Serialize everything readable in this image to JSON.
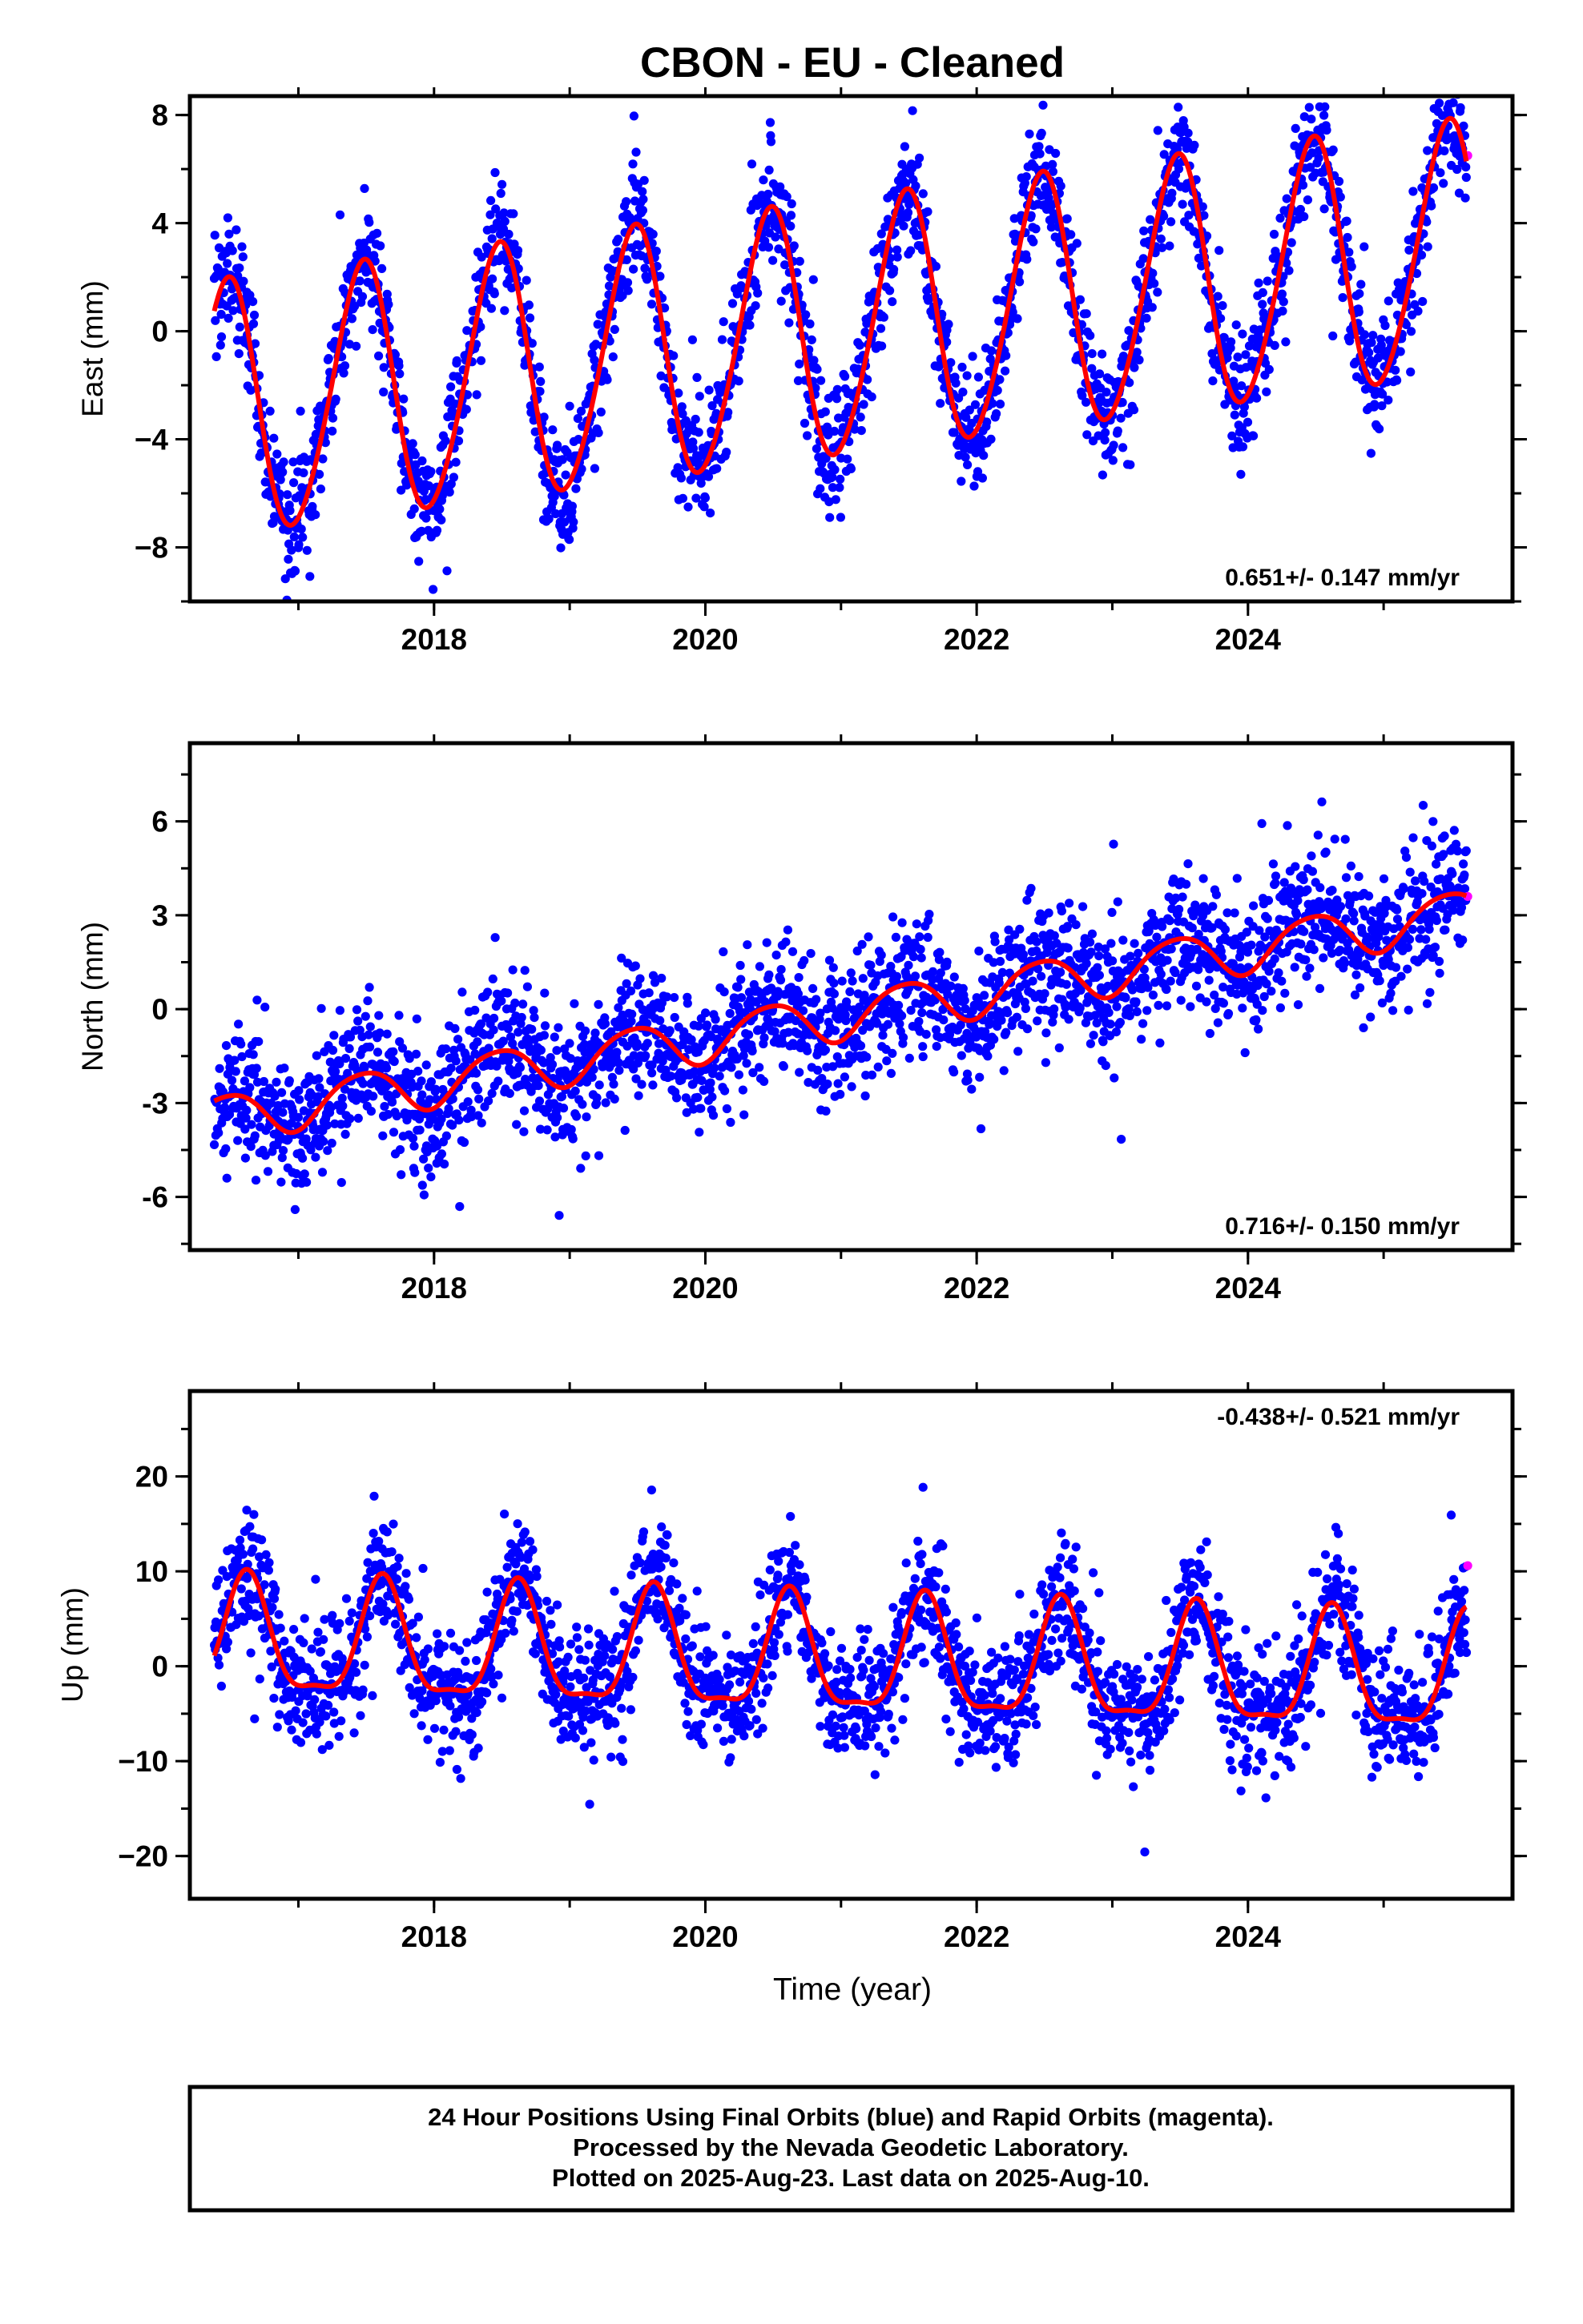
{
  "chart_data": {
    "type": "scatter",
    "title": "CBON  - EU - Cleaned",
    "xlabel": "Time (year)",
    "x_ticks": [
      2018,
      2020,
      2022,
      2024
    ],
    "x_tick_labels": [
      "2018",
      "2020",
      "2022",
      "2024"
    ],
    "xlim": [
      2016.2,
      2025.95
    ],
    "colors": {
      "final_orbits": "#0000ff",
      "rapid_orbits": "#ff00ff",
      "model": "#ff0000"
    },
    "panels": [
      {
        "id": "east",
        "ylabel": "East (mm)",
        "ylim": [
          -10.0,
          8.7
        ],
        "y_ticks": [
          8,
          4,
          0,
          -4,
          -8
        ],
        "y_tick_labels": [
          "8",
          "4",
          "0",
          "−4",
          "−8"
        ],
        "rate_label": "0.651+/- 0.147 mm/yr",
        "rate_position": "bottom-right",
        "data_start": 2016.38,
        "data_end": 2025.61,
        "trend": {
          "intercept_at_2021": 0.0,
          "slope_mm_per_yr": 0.651
        },
        "annual": {
          "amplitude": 4.7,
          "peak_year_fraction": 0.47
        },
        "semiannual": {
          "amplitude": 0.4,
          "phase_year_fraction": 0.05
        },
        "scatter_sd": 1.1,
        "point_count": 2400,
        "rapid_points": [
          {
            "x": 2025.62,
            "y": 6.5
          }
        ]
      },
      {
        "id": "north",
        "ylabel": "North (mm)",
        "ylim": [
          -7.7,
          8.5
        ],
        "y_ticks": [
          6,
          3,
          0,
          -3,
          -6
        ],
        "y_tick_labels": [
          "6",
          "3",
          "0",
          "-3",
          "-6"
        ],
        "rate_label": "0.716+/- 0.150 mm/yr",
        "rate_position": "bottom-right",
        "data_start": 2016.38,
        "data_end": 2025.61,
        "trend": {
          "intercept_at_2021": -0.2,
          "slope_mm_per_yr": 0.716
        },
        "annual": {
          "amplitude": 0.75,
          "peak_year_fraction": 0.47
        },
        "semiannual": {
          "amplitude": 0.1,
          "phase_year_fraction": 0.2
        },
        "scatter_sd": 1.05,
        "point_count": 2400,
        "rapid_points": [
          {
            "x": 2025.62,
            "y": 3.6
          }
        ]
      },
      {
        "id": "up",
        "ylabel": "Up (mm)",
        "ylim": [
          -24.5,
          29.0
        ],
        "y_ticks": [
          20,
          10,
          0,
          -10,
          -20
        ],
        "y_tick_labels": [
          "20",
          "10",
          "0",
          "−10",
          "−20"
        ],
        "rate_label": "-0.438+/- 0.521 mm/yr",
        "rate_position": "top-right",
        "data_start": 2016.38,
        "data_end": 2025.61,
        "trend": {
          "intercept_at_2021": 0.5,
          "slope_mm_per_yr": -0.438
        },
        "annual": {
          "amplitude": 6.0,
          "peak_year_fraction": 0.62
        },
        "semiannual": {
          "amplitude": 1.8,
          "phase_year_fraction": 0.12
        },
        "scatter_sd": 3.3,
        "point_count": 2400,
        "rapid_points": [
          {
            "x": 2025.62,
            "y": 10.6
          }
        ]
      }
    ]
  },
  "footer": {
    "line1": "24 Hour Positions Using Final Orbits (blue) and Rapid Orbits (magenta).",
    "line2": "Processed by the Nevada Geodetic Laboratory.",
    "line3": "Plotted on 2025-Aug-23. Last data on 2025-Aug-10."
  }
}
